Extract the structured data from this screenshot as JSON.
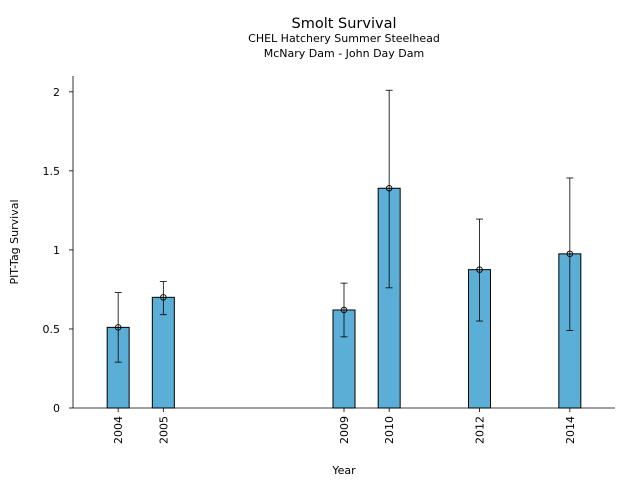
{
  "chart_data": {
    "type": "bar",
    "title": "Smolt Survival",
    "subtitle_lines": [
      "CHEL Hatchery Summer Steelhead",
      "McNary Dam - John Day Dam"
    ],
    "xlabel": "Year",
    "ylabel": "PIT-Tag Survival",
    "x": [
      2004,
      2005,
      2009,
      2010,
      2012,
      2014
    ],
    "xlim": [
      2003,
      2015
    ],
    "values": [
      0.51,
      0.7,
      0.62,
      1.39,
      0.875,
      0.975
    ],
    "error_low": [
      0.29,
      0.59,
      0.45,
      0.76,
      0.55,
      0.49
    ],
    "error_high": [
      0.73,
      0.8,
      0.79,
      2.01,
      1.195,
      1.455
    ],
    "ylim": [
      0,
      2.1
    ],
    "yticks": [
      0,
      0.5,
      1,
      1.5,
      2
    ],
    "ytick_labels": [
      "0",
      "0.5",
      "1",
      "1.5",
      "2"
    ],
    "bar_color": "#5bafd6",
    "edge_color": "#000000",
    "grid": false,
    "legend": "none"
  }
}
